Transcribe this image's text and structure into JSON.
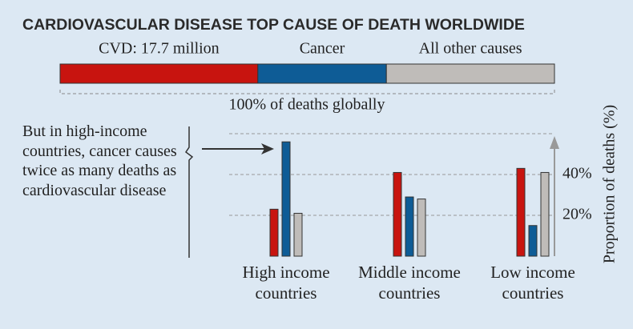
{
  "chart_data": {
    "type": "bar",
    "title": "CARDIOVASCULAR DISEASE TOP CAUSE OF DEATH WORLDWIDE",
    "breakdown": {
      "labels": [
        "CVD: 17.7 million",
        "Cancer",
        "All other causes"
      ],
      "values": [
        40,
        26,
        34
      ],
      "colors": [
        "#c8140f",
        "#0e5c96",
        "#bfbcb9"
      ],
      "caption": "100% of deaths globally"
    },
    "annotation": "But in high-income countries, cancer causes twice as many deaths as cardiovascular disease",
    "categories": [
      "High income countries",
      "Middle income countries",
      "Low income countries"
    ],
    "series": [
      {
        "color": "#c8140f",
        "values": [
          23,
          41,
          43
        ]
      },
      {
        "color": "#0e5c96",
        "values": [
          56,
          29,
          15
        ]
      },
      {
        "color": "#bfbcb9",
        "values": [
          21,
          28,
          41
        ]
      }
    ],
    "ylabel": "Proportion of deaths (%)",
    "ylim": [
      0,
      60
    ],
    "yticks": [
      {
        "value": 20,
        "label": "20%"
      },
      {
        "value": 40,
        "label": "40%"
      }
    ],
    "grid": true
  }
}
